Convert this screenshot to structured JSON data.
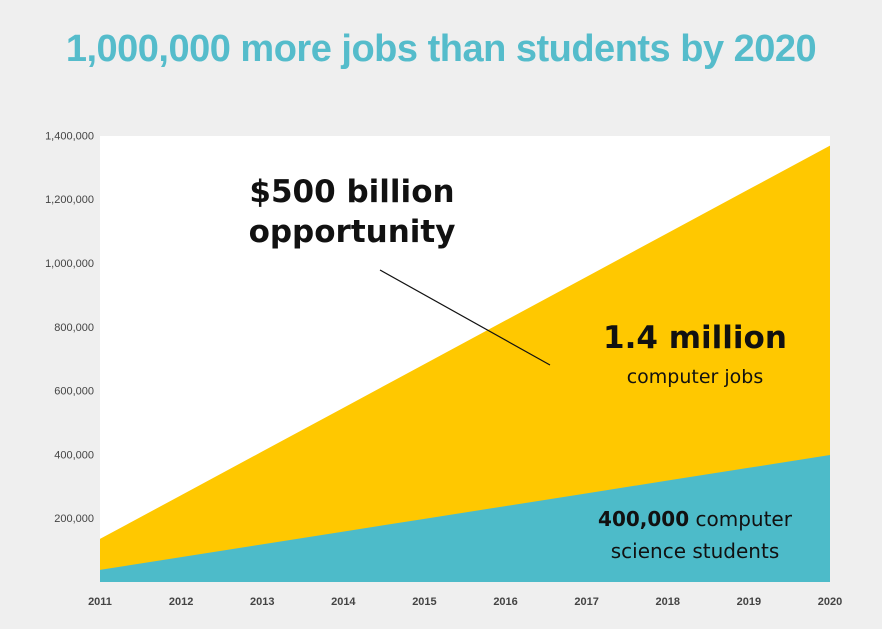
{
  "title": "1,000,000 more jobs than students by 2020",
  "chart_data": {
    "type": "area",
    "x": [
      "2011",
      "2012",
      "2013",
      "2014",
      "2015",
      "2016",
      "2017",
      "2018",
      "2019",
      "2020"
    ],
    "series": [
      {
        "name": "computer jobs",
        "values": [
          135000,
          272000,
          409000,
          546000,
          683000,
          820000,
          957000,
          1094000,
          1231000,
          1368000
        ],
        "color": "#ffc800"
      },
      {
        "name": "computer science students",
        "values": [
          38000,
          78000,
          118000,
          158000,
          198000,
          238000,
          278000,
          318000,
          358000,
          398000
        ],
        "color": "#4dbbc9"
      }
    ],
    "y_ticks": [
      "200,000",
      "400,000",
      "600,000",
      "800,000",
      "1,000,000",
      "1,200,000",
      "1,400,000"
    ],
    "y_tick_values": [
      200000,
      400000,
      600000,
      800000,
      1000000,
      1200000,
      1400000
    ],
    "ylim": [
      0,
      1400000
    ],
    "annotations": {
      "opportunity_line1": "$500 billion",
      "opportunity_line2": "opportunity",
      "jobs_main": "1.4 million",
      "jobs_sub": "computer jobs",
      "students_bold": "400,000",
      "students_rest1": "computer",
      "students_rest2": "science students"
    },
    "grid": false
  }
}
